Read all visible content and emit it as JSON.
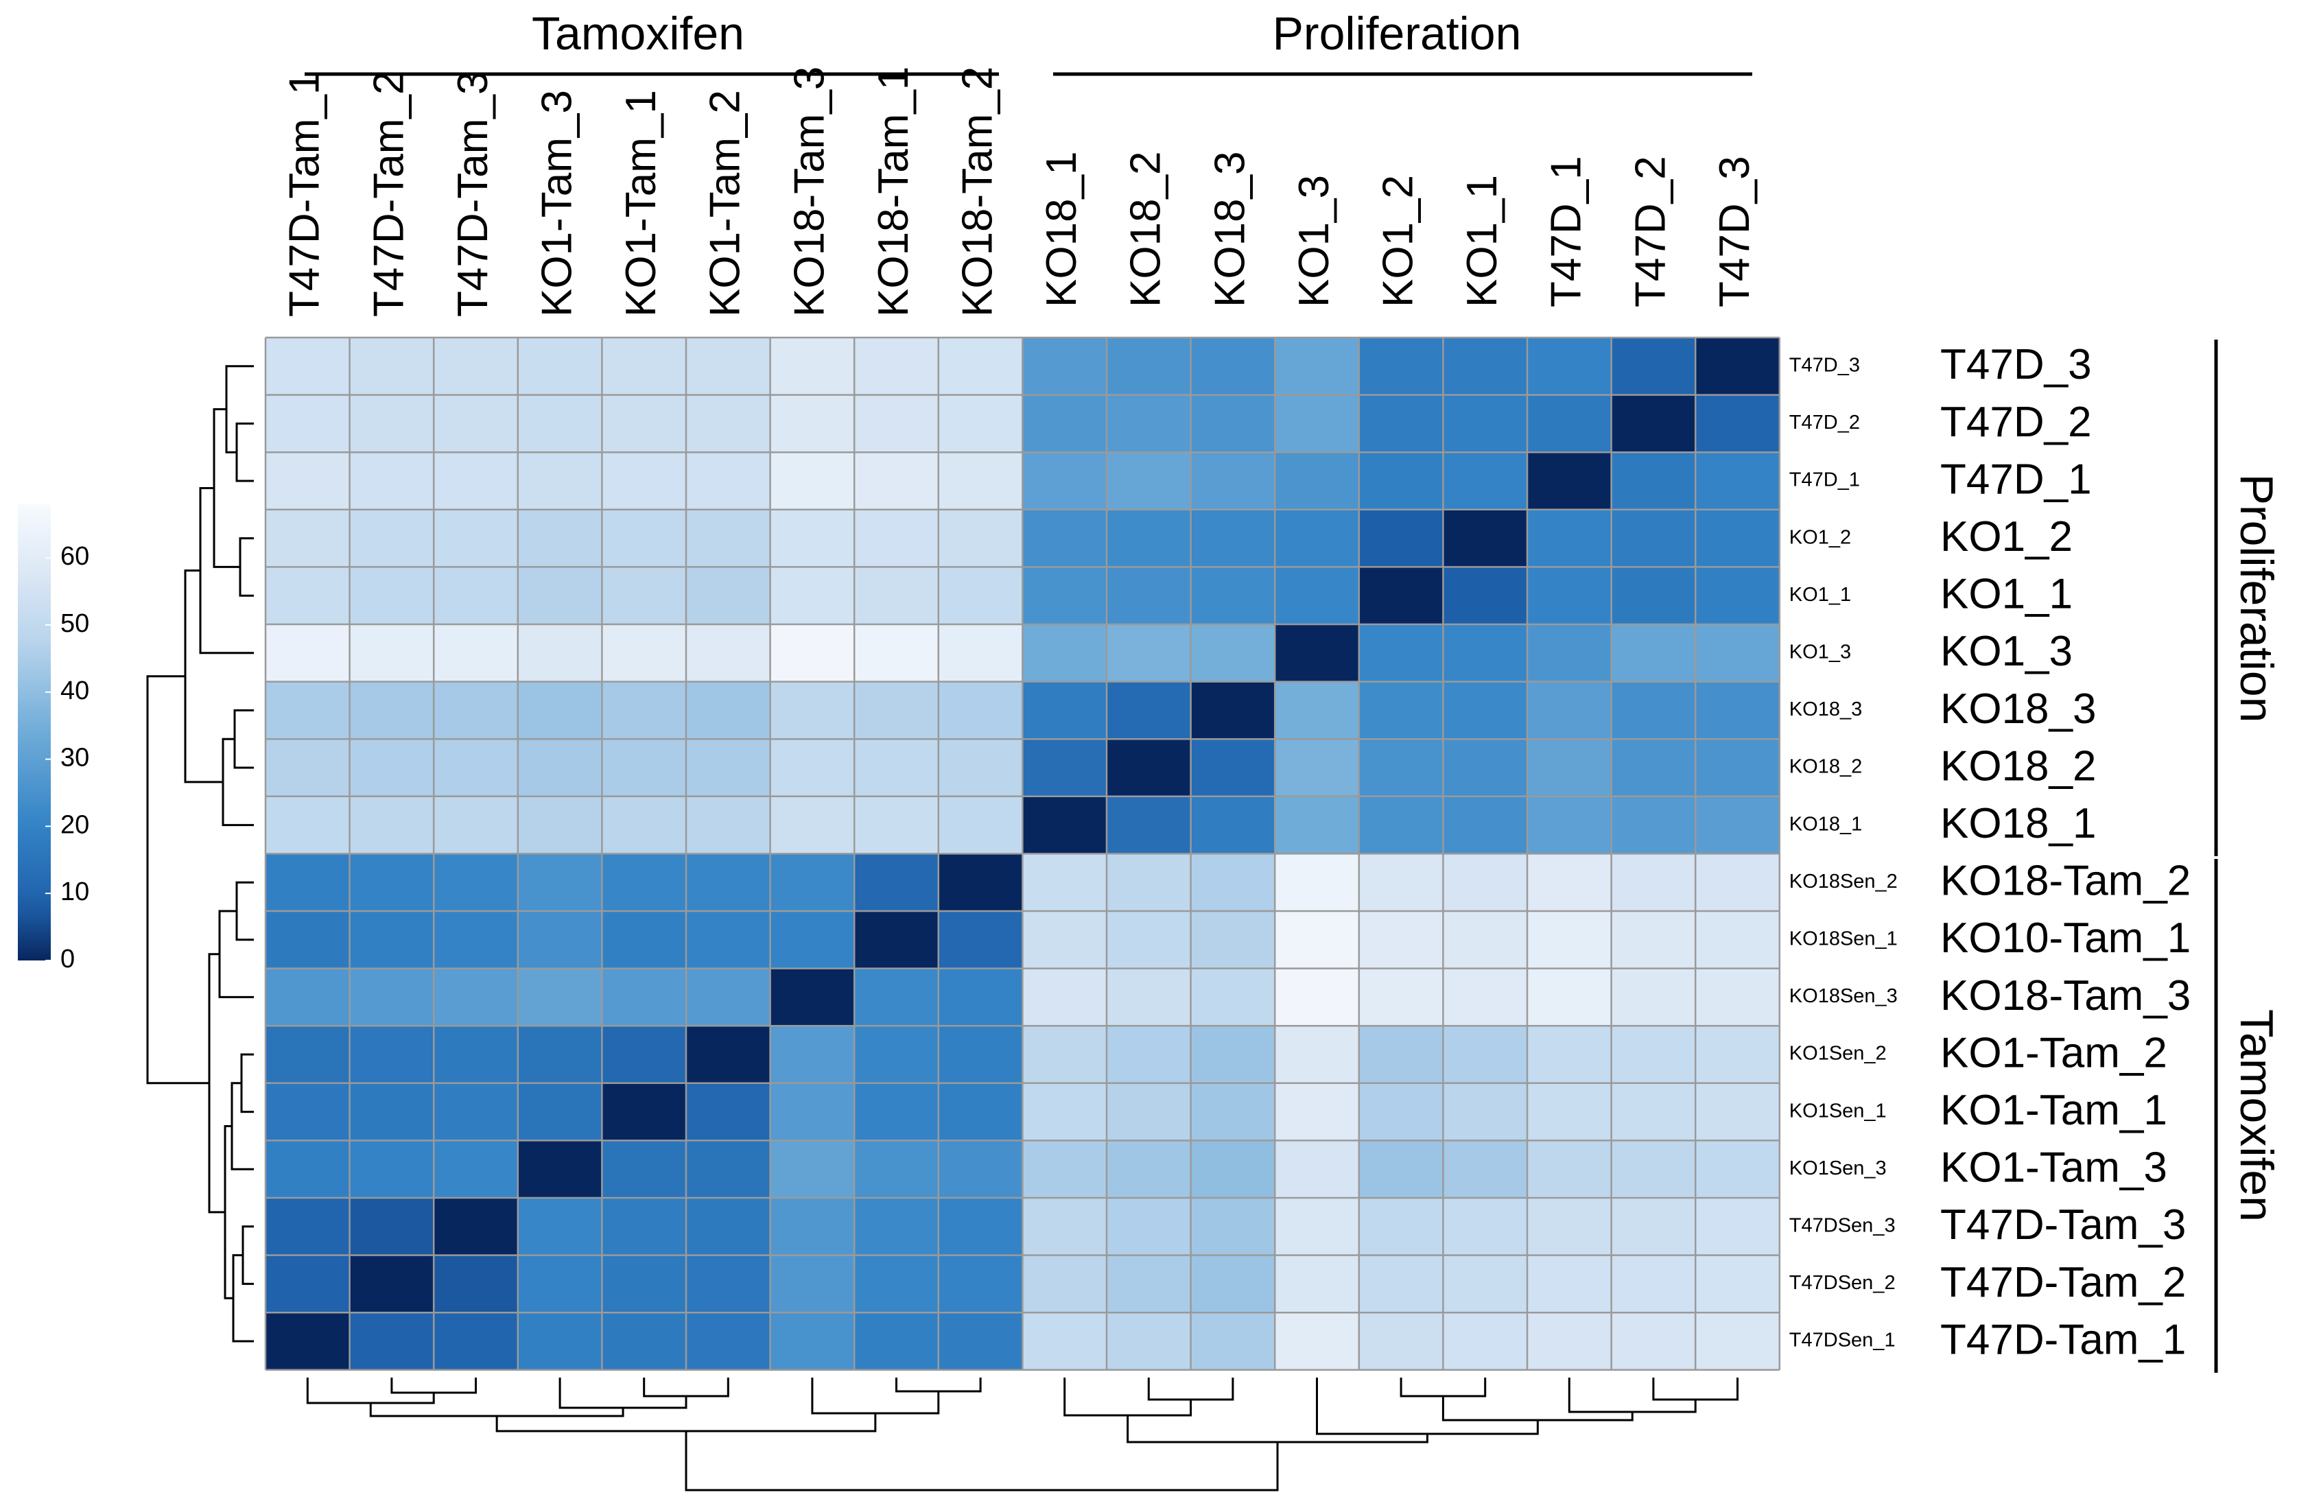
{
  "chart_data": {
    "type": "heatmap",
    "title": "",
    "column_group_labels": [
      "Tamoxifen",
      "Proliferation"
    ],
    "row_group_labels": [
      "Proliferation",
      "Tamoxifen"
    ],
    "column_labels": [
      "T47D-Tam_1",
      "T47D-Tam_2",
      "T47D-Tam_3",
      "KO1-Tam_3",
      "KO1-Tam_1",
      "KO1-Tam_2",
      "KO18-Tam_3",
      "KO18-Tam_1",
      "KO18-Tam_2",
      "KO18_1",
      "KO18_2",
      "KO18_3",
      "KO1_3",
      "KO1_2",
      "KO1_1",
      "T47D_1",
      "T47D_2",
      "T47D_3"
    ],
    "row_labels_small": [
      "T47D_3",
      "T47D_2",
      "T47D_1",
      "KO1_2",
      "KO1_1",
      "KO1_3",
      "KO18_3",
      "KO18_2",
      "KO18_1",
      "KO18Sen_2",
      "KO18Sen_1",
      "KO18Sen_3",
      "KO1Sen_2",
      "KO1Sen_1",
      "KO1Sen_3",
      "T47DSen_3",
      "T47DSen_2",
      "T47DSen_1"
    ],
    "row_labels_large": [
      "T47D_3",
      "T47D_2",
      "T47D_1",
      "KO1_2",
      "KO1_1",
      "KO1_3",
      "KO18_3",
      "KO18_2",
      "KO18_1",
      "KO18-Tam_2",
      "KO10-Tam_1",
      "KO18-Tam_3",
      "KO1-Tam_2",
      "KO1-Tam_1",
      "KO1-Tam_3",
      "T47D-Tam_3",
      "T47D-Tam_2",
      "T47D-Tam_1"
    ],
    "colorbar": {
      "ticks": [
        "60",
        "50",
        "40",
        "30",
        "20",
        "10",
        "0"
      ],
      "tick_values": [
        60,
        50,
        40,
        30,
        20,
        10,
        0
      ],
      "range": [
        0,
        68
      ]
    },
    "values": [
      [
        54,
        53,
        53,
        52,
        53,
        53,
        58,
        56,
        55,
        28,
        26,
        24,
        32,
        18,
        18,
        20,
        10,
        0
      ],
      [
        54,
        53,
        53,
        52,
        53,
        53,
        58,
        56,
        55,
        27,
        28,
        26,
        32,
        18,
        19,
        17,
        0,
        10
      ],
      [
        56,
        54,
        54,
        53,
        54,
        54,
        61,
        59,
        57,
        30,
        32,
        29,
        26,
        19,
        20,
        0,
        17,
        20
      ],
      [
        53,
        51,
        51,
        48,
        50,
        49,
        55,
        54,
        53,
        24,
        23,
        22,
        21,
        8,
        0,
        20,
        18,
        19
      ],
      [
        52,
        50,
        50,
        47,
        49,
        47,
        55,
        53,
        51,
        25,
        24,
        23,
        21,
        0,
        8,
        20,
        17,
        19
      ],
      [
        63,
        61,
        61,
        58,
        60,
        59,
        66,
        64,
        61,
        34,
        36,
        35,
        0,
        21,
        21,
        26,
        32,
        32
      ],
      [
        45,
        44,
        44,
        42,
        44,
        43,
        49,
        47,
        46,
        18,
        12,
        0,
        35,
        23,
        22,
        29,
        24,
        24
      ],
      [
        47,
        46,
        46,
        44,
        45,
        45,
        51,
        50,
        48,
        13,
        0,
        12,
        36,
        25,
        24,
        31,
        26,
        26
      ],
      [
        50,
        49,
        49,
        47,
        48,
        48,
        53,
        52,
        50,
        0,
        13,
        18,
        34,
        25,
        24,
        30,
        28,
        29
      ],
      [
        19,
        20,
        21,
        25,
        21,
        21,
        22,
        11,
        0,
        52,
        49,
        46,
        64,
        57,
        56,
        59,
        56,
        56
      ],
      [
        17,
        19,
        20,
        24,
        19,
        20,
        20,
        0,
        11,
        53,
        50,
        47,
        65,
        59,
        58,
        61,
        58,
        57
      ],
      [
        27,
        28,
        29,
        31,
        28,
        28,
        0,
        22,
        20,
        56,
        53,
        50,
        66,
        60,
        59,
        62,
        58,
        58
      ],
      [
        15,
        16,
        17,
        15,
        11,
        0,
        28,
        21,
        19,
        49,
        46,
        42,
        58,
        44,
        46,
        51,
        51,
        52
      ],
      [
        16,
        17,
        18,
        15,
        0,
        11,
        28,
        20,
        19,
        50,
        47,
        43,
        59,
        46,
        48,
        52,
        52,
        53
      ],
      [
        19,
        20,
        21,
        0,
        15,
        15,
        31,
        25,
        24,
        45,
        43,
        40,
        56,
        42,
        44,
        49,
        49,
        50
      ],
      [
        10,
        7,
        0,
        21,
        18,
        17,
        27,
        22,
        20,
        49,
        46,
        43,
        57,
        50,
        51,
        53,
        53,
        54
      ],
      [
        9,
        0,
        7,
        20,
        17,
        16,
        27,
        21,
        20,
        48,
        45,
        42,
        57,
        51,
        52,
        54,
        54,
        55
      ],
      [
        0,
        9,
        10,
        19,
        17,
        16,
        25,
        19,
        18,
        51,
        48,
        45,
        60,
        53,
        54,
        56,
        56,
        57
      ]
    ]
  }
}
